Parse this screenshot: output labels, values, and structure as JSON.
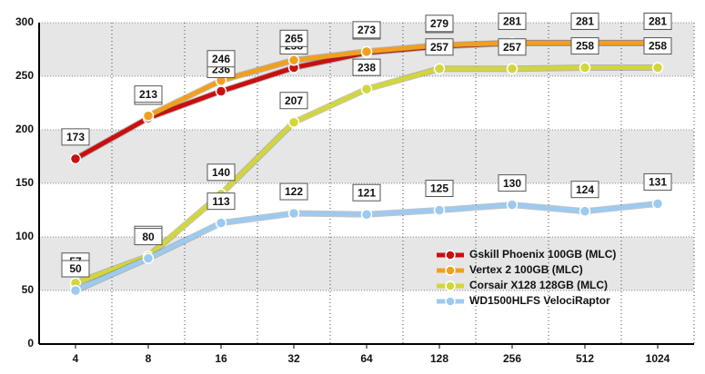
{
  "chart_data": {
    "type": "line",
    "categories": [
      "4",
      "8",
      "16",
      "32",
      "64",
      "128",
      "256",
      "512",
      "1024"
    ],
    "series": [
      {
        "name": "Gskill Phoenix  100GB (MLC)",
        "color": "#c81010",
        "values": [
          173,
          211,
          236,
          258,
          272,
          278,
          281,
          281,
          281
        ]
      },
      {
        "name": "Vertex 2 100GB (MLC)",
        "color": "#f0a020",
        "values": [
          null,
          213,
          246,
          265,
          273,
          279,
          281,
          281,
          281
        ]
      },
      {
        "name": "Corsair X128 128GB (MLC)",
        "color": "#d2d63c",
        "values": [
          57,
          82,
          140,
          207,
          238,
          257,
          257,
          258,
          258
        ]
      },
      {
        "name": "WD1500HLFS VelociRaptor",
        "color": "#9ccaf0",
        "values": [
          50,
          80,
          113,
          122,
          121,
          125,
          130,
          124,
          131
        ]
      }
    ],
    "ylim": [
      0,
      300
    ],
    "yticks": [
      0,
      50,
      100,
      150,
      200,
      250,
      300
    ],
    "grid": true
  }
}
